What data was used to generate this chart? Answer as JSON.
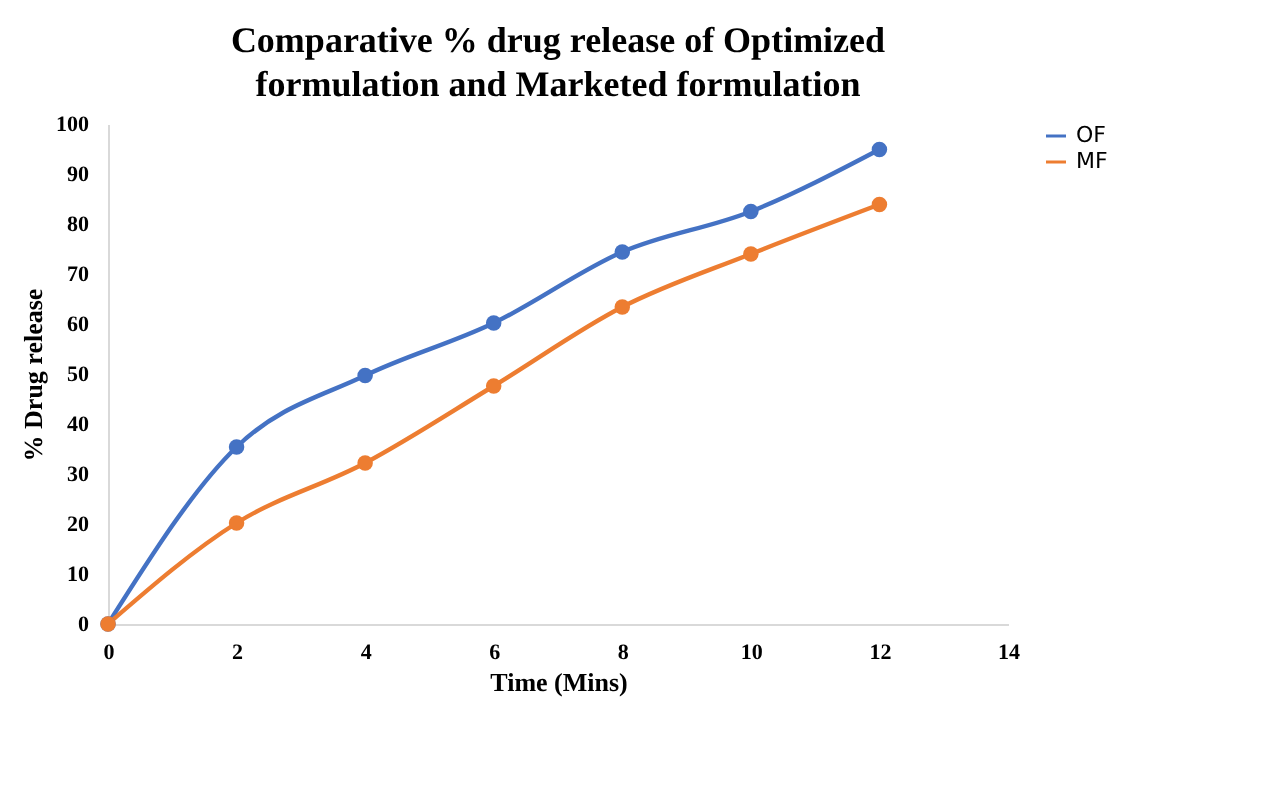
{
  "chart_data": {
    "type": "line",
    "title": "Comparative % drug release of Optimized formulation and Marketed formulation",
    "xlabel": "Time (Mins)",
    "ylabel": "% Drug release",
    "x": [
      0,
      2,
      4,
      6,
      8,
      10,
      12
    ],
    "series": [
      {
        "name": "OF",
        "color": "#4472c4",
        "values": [
          0,
          35.4,
          49.7,
          60.2,
          74.4,
          82.5,
          94.9
        ]
      },
      {
        "name": "MF",
        "color": "#ed7d31",
        "values": [
          0,
          20.2,
          32.2,
          47.6,
          63.4,
          74,
          83.9
        ]
      }
    ],
    "xlim": [
      0,
      14
    ],
    "xticks": [
      0,
      2,
      4,
      6,
      8,
      10,
      12,
      14
    ],
    "ylim": [
      0,
      100
    ],
    "yticks": [
      0,
      10,
      20,
      30,
      40,
      50,
      60,
      70,
      80,
      90,
      100
    ],
    "grid": false,
    "legend": "right",
    "marker": "circle",
    "line_style": "solid"
  }
}
